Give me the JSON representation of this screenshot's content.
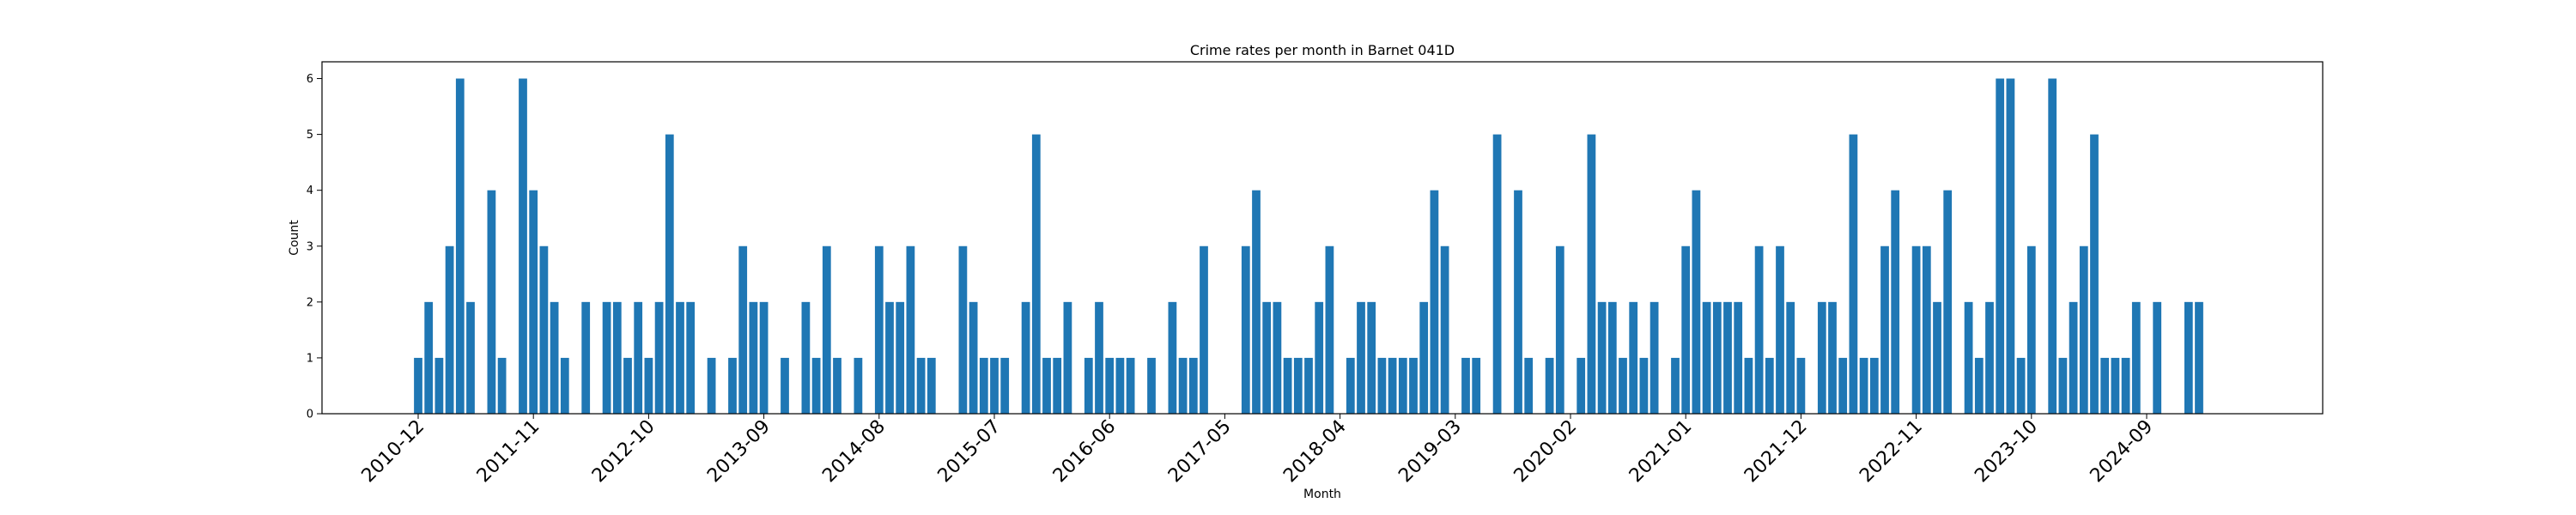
{
  "chart_data": {
    "type": "bar",
    "title": "Crime rates per month in Barnet 041D",
    "xlabel": "Month",
    "ylabel": "Count",
    "ylim": [
      0,
      6.3
    ],
    "yticks": [
      0,
      1,
      2,
      3,
      4,
      5,
      6
    ],
    "grid": false,
    "color": "#1f77b4",
    "xtick_labels": [
      "2010-12",
      "2011-11",
      "2012-10",
      "2013-09",
      "2014-08",
      "2015-07",
      "2016-06",
      "2017-05",
      "2018-04",
      "2019-03",
      "2020-02",
      "2021-01",
      "2021-12",
      "2022-11",
      "2023-10",
      "2024-09"
    ],
    "categories": [
      "2010-12",
      "2011-01",
      "2011-02",
      "2011-03",
      "2011-04",
      "2011-05",
      "2011-06",
      "2011-07",
      "2011-08",
      "2011-09",
      "2011-10",
      "2011-11",
      "2011-12",
      "2012-01",
      "2012-02",
      "2012-03",
      "2012-04",
      "2012-05",
      "2012-06",
      "2012-07",
      "2012-08",
      "2012-09",
      "2012-10",
      "2012-11",
      "2012-12",
      "2013-01",
      "2013-02",
      "2013-03",
      "2013-04",
      "2013-05",
      "2013-06",
      "2013-07",
      "2013-08",
      "2013-09",
      "2013-10",
      "2013-11",
      "2013-12",
      "2014-01",
      "2014-02",
      "2014-03",
      "2014-04",
      "2014-05",
      "2014-06",
      "2014-07",
      "2014-08",
      "2014-09",
      "2014-10",
      "2014-11",
      "2014-12",
      "2015-01",
      "2015-02",
      "2015-03",
      "2015-04",
      "2015-05",
      "2015-06",
      "2015-07",
      "2015-08",
      "2015-09",
      "2015-10",
      "2015-11",
      "2015-12",
      "2016-01",
      "2016-02",
      "2016-03",
      "2016-04",
      "2016-05",
      "2016-06",
      "2016-07",
      "2016-08",
      "2016-09",
      "2016-10",
      "2016-11",
      "2016-12",
      "2017-01",
      "2017-02",
      "2017-03",
      "2017-04",
      "2017-05",
      "2017-06",
      "2017-07",
      "2017-08",
      "2017-09",
      "2017-10",
      "2017-11",
      "2017-12",
      "2018-01",
      "2018-02",
      "2018-03",
      "2018-04",
      "2018-05",
      "2018-06",
      "2018-07",
      "2018-08",
      "2018-09",
      "2018-10",
      "2018-11",
      "2018-12",
      "2019-01",
      "2019-02",
      "2019-03",
      "2019-04",
      "2019-05",
      "2019-06",
      "2019-07",
      "2019-08",
      "2019-09",
      "2019-10",
      "2019-11",
      "2019-12",
      "2020-01",
      "2020-02",
      "2020-03",
      "2020-04",
      "2020-05",
      "2020-06",
      "2020-07",
      "2020-08",
      "2020-09",
      "2020-10",
      "2020-11",
      "2020-12",
      "2021-01",
      "2021-02",
      "2021-03",
      "2021-04",
      "2021-05",
      "2021-06",
      "2021-07",
      "2021-08",
      "2021-09",
      "2021-10",
      "2021-11",
      "2021-12",
      "2022-01",
      "2022-02",
      "2022-03",
      "2022-04",
      "2022-05",
      "2022-06",
      "2022-07",
      "2022-08",
      "2022-09",
      "2022-10",
      "2022-11",
      "2022-12",
      "2023-01",
      "2023-02",
      "2023-03",
      "2023-04",
      "2023-05",
      "2023-06",
      "2023-07",
      "2023-08",
      "2023-09",
      "2023-10",
      "2023-11",
      "2023-12",
      "2024-01",
      "2024-02",
      "2024-03",
      "2024-04",
      "2024-05",
      "2024-06",
      "2024-07",
      "2024-08",
      "2024-09",
      "2024-10",
      "2024-11",
      "2024-12",
      "2025-01",
      "2025-02"
    ],
    "values": [
      1,
      2,
      1,
      3,
      6,
      2,
      0,
      4,
      1,
      0,
      6,
      4,
      3,
      2,
      1,
      0,
      2,
      0,
      2,
      2,
      1,
      2,
      1,
      2,
      5,
      2,
      2,
      0,
      1,
      0,
      1,
      3,
      2,
      2,
      0,
      1,
      0,
      2,
      1,
      3,
      1,
      0,
      1,
      0,
      3,
      2,
      2,
      3,
      1,
      1,
      0,
      0,
      3,
      2,
      1,
      1,
      1,
      0,
      2,
      5,
      1,
      1,
      2,
      0,
      1,
      2,
      1,
      1,
      1,
      0,
      1,
      0,
      2,
      1,
      1,
      3,
      0,
      0,
      0,
      3,
      4,
      2,
      2,
      1,
      1,
      1,
      2,
      3,
      0,
      1,
      2,
      2,
      1,
      1,
      1,
      1,
      2,
      4,
      3,
      0,
      1,
      1,
      0,
      5,
      0,
      4,
      1,
      0,
      1,
      3,
      0,
      1,
      5,
      2,
      2,
      1,
      2,
      1,
      2,
      0,
      1,
      3,
      4,
      2,
      2,
      2,
      2,
      1,
      3,
      1,
      3,
      2,
      1,
      0,
      2,
      2,
      1,
      5,
      1,
      1,
      3,
      4,
      0,
      3,
      3,
      2,
      4,
      0,
      2,
      1,
      2,
      6,
      6,
      1,
      3,
      0,
      6,
      1,
      2,
      3,
      5,
      1,
      1,
      1,
      2,
      0,
      2,
      0,
      0,
      2,
      2
    ]
  }
}
